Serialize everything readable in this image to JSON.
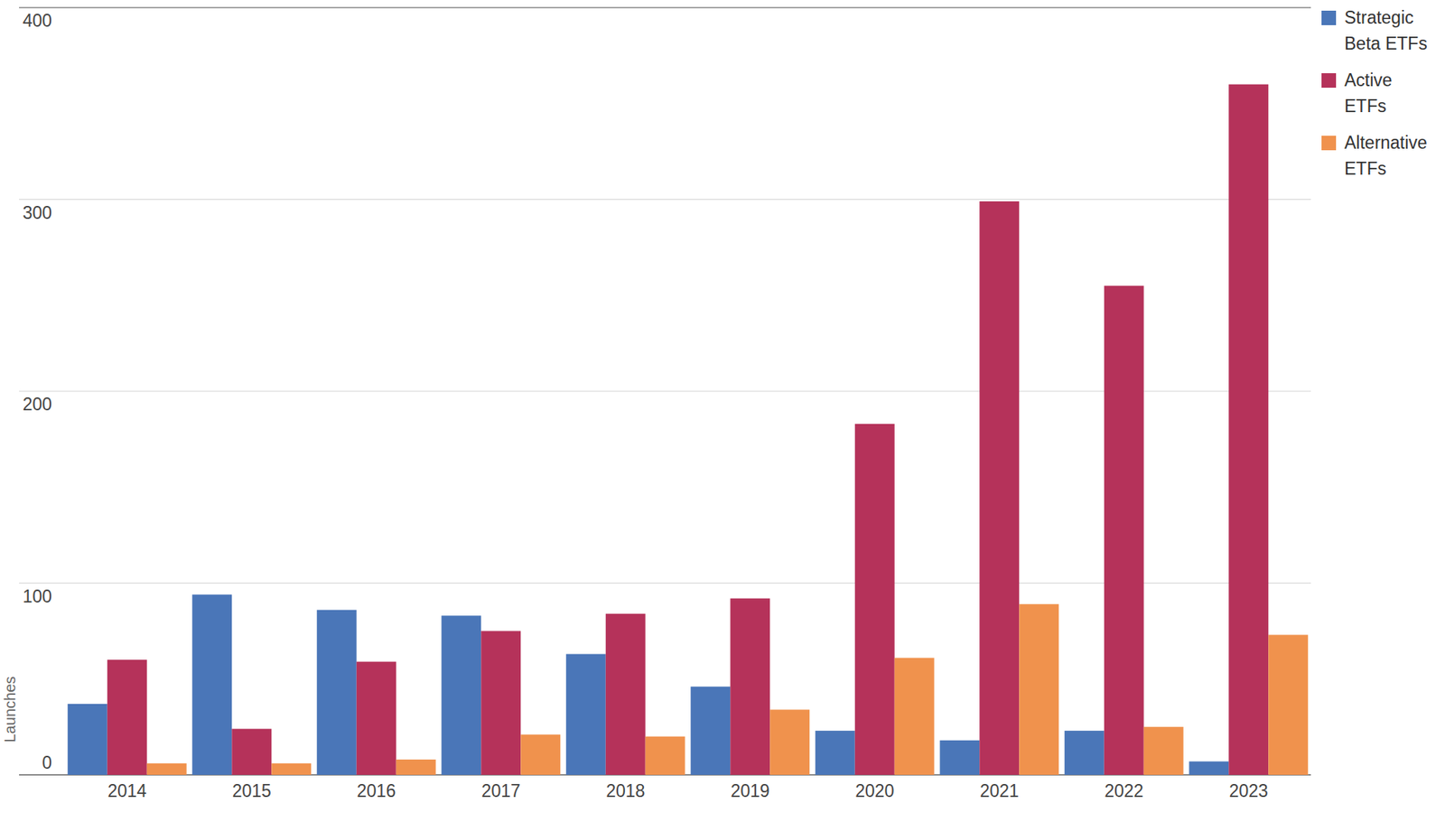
{
  "chart_data": {
    "type": "bar",
    "y_label": "Launches",
    "categories": [
      "2014",
      "2015",
      "2016",
      "2017",
      "2018",
      "2019",
      "2020",
      "2021",
      "2022",
      "2023"
    ],
    "series": [
      {
        "name": "Strategic Beta ETFs",
        "color": "#4a76b8",
        "values": [
          37,
          94,
          86,
          83,
          63,
          46,
          23,
          18,
          23,
          7
        ]
      },
      {
        "name": "Active ETFs",
        "color": "#b5325a",
        "values": [
          60,
          24,
          59,
          75,
          84,
          92,
          183,
          299,
          255,
          360
        ]
      },
      {
        "name": "Alternative ETFs",
        "color": "#f0924d",
        "values": [
          6,
          6,
          8,
          21,
          20,
          34,
          61,
          89,
          25,
          73
        ]
      }
    ],
    "ylim": [
      0,
      400
    ],
    "yticks": [
      0,
      100,
      200,
      300,
      400
    ],
    "grid": true,
    "legend": "top-right"
  }
}
